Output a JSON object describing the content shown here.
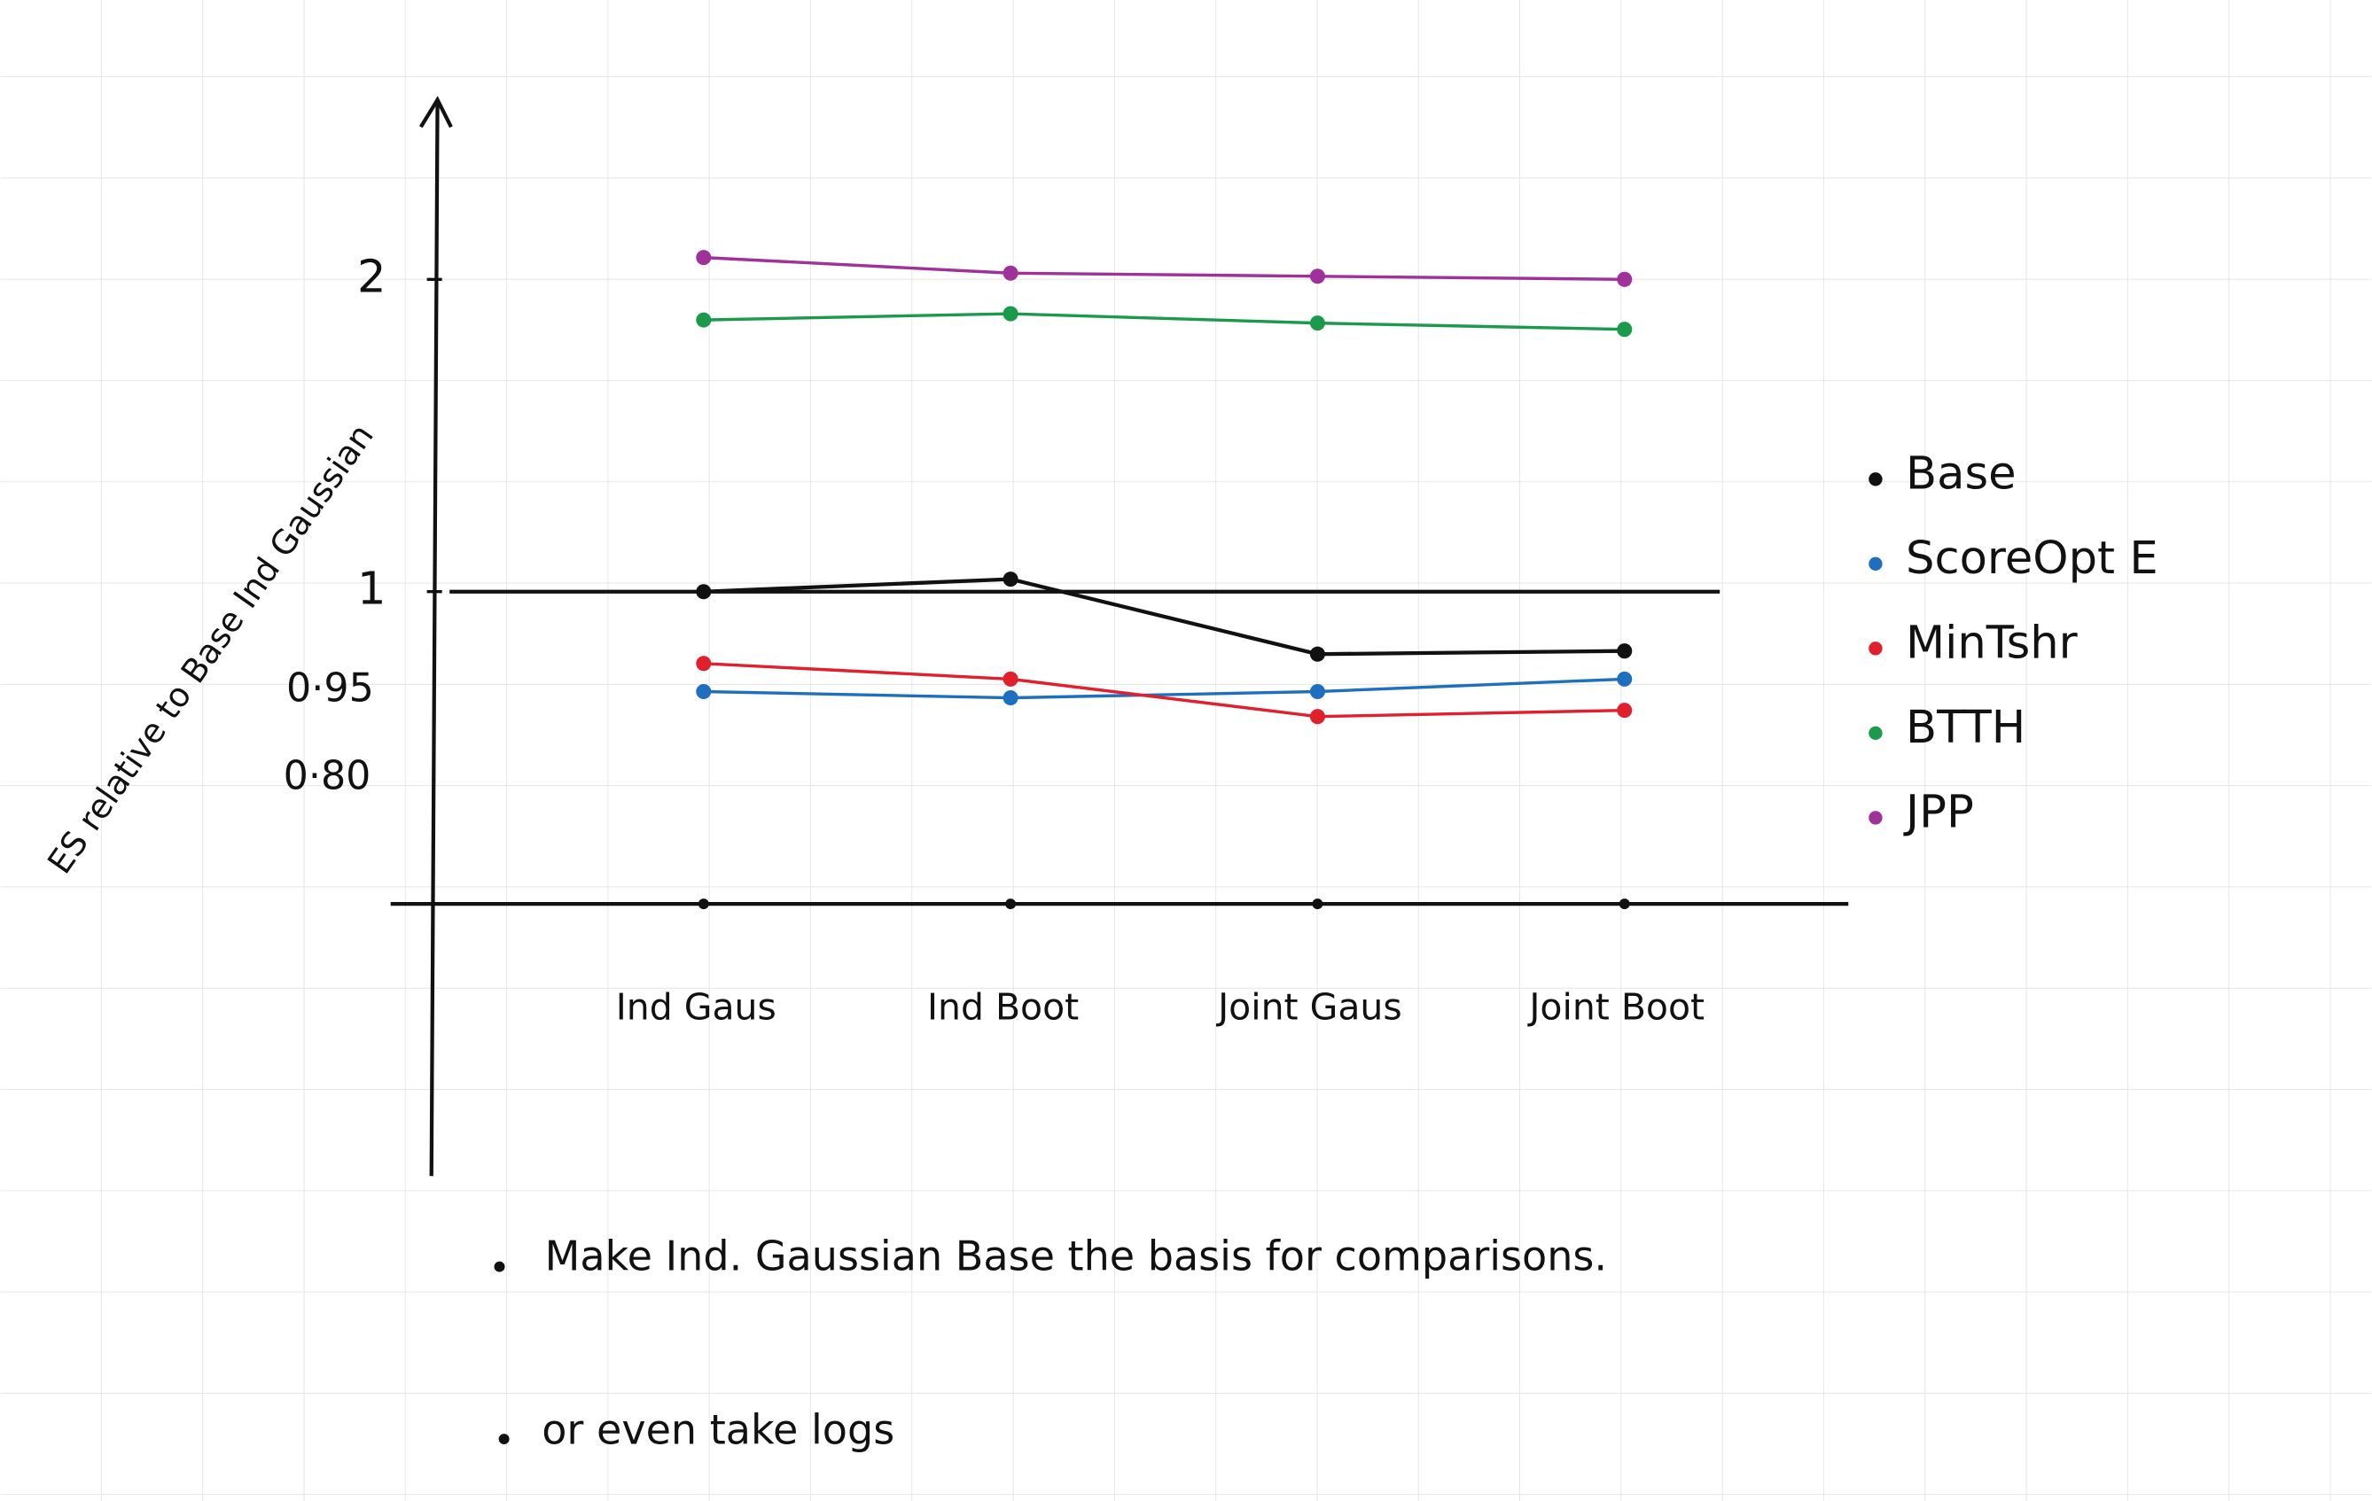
{
  "chart_data": {
    "type": "line",
    "y_label": "ES relative to Base Ind Gaussian",
    "categories": [
      "Ind Gaus",
      "Ind Boot",
      "Joint Gaus",
      "Joint Boot"
    ],
    "series": [
      {
        "name": "Base",
        "color": "#111111",
        "values": [
          1.0,
          1.04,
          0.8,
          0.81
        ]
      },
      {
        "name": "ScoreOpt E",
        "color": "#1f6fc0",
        "values": [
          0.68,
          0.66,
          0.68,
          0.72
        ]
      },
      {
        "name": "MinTshr",
        "color": "#e0202c",
        "values": [
          0.77,
          0.72,
          0.6,
          0.62
        ]
      },
      {
        "name": "BTTH",
        "color": "#1a9a4a",
        "values": [
          1.87,
          1.89,
          1.86,
          1.84
        ]
      },
      {
        "name": "JPP",
        "color": "#a0309a",
        "values": [
          2.07,
          2.02,
          2.01,
          2.0
        ]
      }
    ],
    "ylim": [
      0,
      2.58
    ],
    "yticks": [
      1,
      2
    ],
    "hlines": [
      1
    ],
    "annotations": [
      {
        "text": "0·95",
        "color": "#1f6fc0"
      },
      {
        "text": "0·80",
        "color": "#1f6fc0"
      }
    ],
    "notes": [
      "Make Ind. Gaussian Base the basis for comparisons.",
      "or even take logs"
    ]
  }
}
